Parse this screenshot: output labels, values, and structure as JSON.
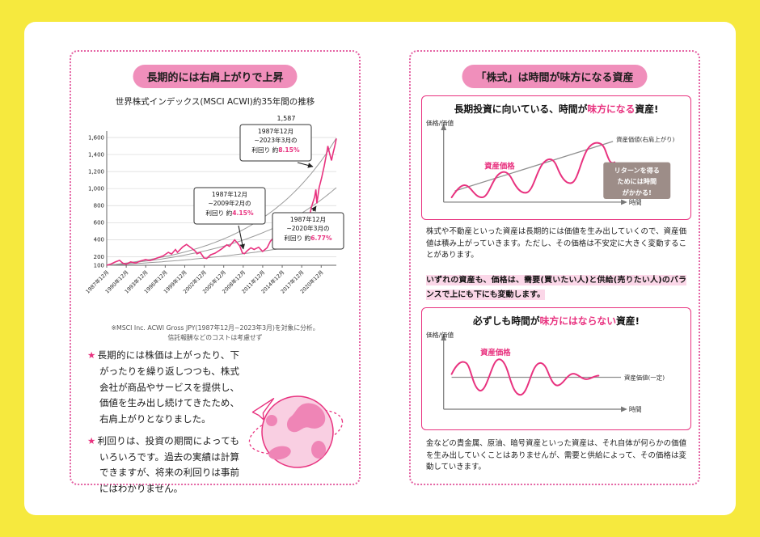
{
  "page": {
    "left": {
      "badge": "長期的には右肩上がりで上昇",
      "star": "★",
      "footnote_line1": "※MSCI Inc. ACWI Gross JPY(1987年12月~2023年3月)を対象に分析。",
      "footnote_line2": "信託報酬などのコストは考慮せず",
      "bullets": [
        "長期的には株価は上がったり、下がったりを繰り返しつつも、株式会社が商品やサービスを提供し、価値を生み出し続けてきたため、右肩上がりとなりました。",
        "利回りは、投資の期間によってもいろいろです。過去の実績は計算できますが、将来の利回りは事前にはわかりません。"
      ]
    },
    "right": {
      "badge": "「株式」は時間が味方になる資産",
      "box1": {
        "header_pre": "長期投資に向いている、時間が",
        "header_em": "味方になる",
        "header_post": "資産!",
        "desc": "株式や不動産といった資産は長期的には価値を生み出していくので、資産価値は積み上がっていきます。ただし、その価格は不安定に大きく変動することがあります。"
      },
      "between_note": "いずれの資産も、価格は、需要(買いたい人)と供給(売りたい人)のバランスで上にも下にも変動します。",
      "box2": {
        "header_pre": "必ずしも時間が",
        "header_em": "味方にはならない",
        "header_post": "資産!",
        "desc": "金などの貴金属、原油、暗号資産といった資産は、それ自体が何らかの価値を生み出していくことはありませんが、需要と供給によって、その価格は変動していきます。"
      }
    }
  },
  "chart_data": [
    {
      "type": "line",
      "title": "世界株式インデックス(MSCI ACWI)約35年間の推移",
      "end_label": "1,587",
      "end_value": 1587,
      "grid": "horizontal",
      "legend": false,
      "x_axis": {
        "start": 1987.92,
        "end": 2023.25,
        "tick_step_years": 3,
        "ticks": [
          "1987年12月",
          "1990年12月",
          "1993年12月",
          "1996年12月",
          "1999年12月",
          "2002年12月",
          "2005年12月",
          "2008年12月",
          "2011年12月",
          "2014年12月",
          "2017年12月",
          "2020年12月"
        ]
      },
      "y_axis": {
        "range": [
          100,
          1600
        ],
        "ticks": [
          {
            "label": "1,600",
            "value": 1600
          },
          {
            "label": "1,400",
            "value": 1400
          },
          {
            "label": "1,200",
            "value": 1200
          },
          {
            "label": "1,000",
            "value": 1000
          },
          {
            "label": "800",
            "value": 800
          },
          {
            "label": "600",
            "value": 600
          },
          {
            "label": "400",
            "value": 400
          },
          {
            "label": "200",
            "value": 200
          },
          {
            "label": "100",
            "value": 100
          }
        ]
      },
      "series": [
        {
          "name": "世界株式インデックス(MSCI ACWI)",
          "color": "#e8327f",
          "points": [
            [
              1987.92,
              100
            ],
            [
              1988.5,
              112
            ],
            [
              1989.2,
              138
            ],
            [
              1989.9,
              158
            ],
            [
              1990.4,
              125
            ],
            [
              1990.9,
              112
            ],
            [
              1991.6,
              140
            ],
            [
              1992.4,
              126
            ],
            [
              1993.1,
              150
            ],
            [
              1993.9,
              166
            ],
            [
              1994.6,
              155
            ],
            [
              1995.6,
              184
            ],
            [
              1996.6,
              210
            ],
            [
              1997.4,
              252
            ],
            [
              1997.9,
              232
            ],
            [
              1998.5,
              285
            ],
            [
              1998.8,
              252
            ],
            [
              1999.6,
              315
            ],
            [
              2000.2,
              345
            ],
            [
              2000.9,
              305
            ],
            [
              2001.6,
              262
            ],
            [
              2001.8,
              235
            ],
            [
              2002.3,
              252
            ],
            [
              2002.9,
              185
            ],
            [
              2003.3,
              180
            ],
            [
              2003.9,
              222
            ],
            [
              2004.6,
              242
            ],
            [
              2005.6,
              292
            ],
            [
              2006.4,
              340
            ],
            [
              2006.8,
              322
            ],
            [
              2007.6,
              398
            ],
            [
              2008.0,
              365
            ],
            [
              2008.4,
              325
            ],
            [
              2008.8,
              245
            ],
            [
              2009.1,
              236
            ],
            [
              2009.6,
              275
            ],
            [
              2010.1,
              305
            ],
            [
              2010.6,
              285
            ],
            [
              2011.3,
              312
            ],
            [
              2011.9,
              262
            ],
            [
              2012.6,
              305
            ],
            [
              2013.1,
              382
            ],
            [
              2013.6,
              425
            ],
            [
              2014.1,
              455
            ],
            [
              2014.9,
              505
            ],
            [
              2015.5,
              545
            ],
            [
              2016.0,
              488
            ],
            [
              2016.4,
              462
            ],
            [
              2016.9,
              515
            ],
            [
              2017.6,
              590
            ],
            [
              2018.1,
              700
            ],
            [
              2018.5,
              660
            ],
            [
              2018.95,
              610
            ],
            [
              2019.4,
              780
            ],
            [
              2019.9,
              900
            ],
            [
              2020.1,
              990
            ],
            [
              2020.25,
              826
            ],
            [
              2020.6,
              1010
            ],
            [
              2021.0,
              1130
            ],
            [
              2021.4,
              1270
            ],
            [
              2021.8,
              1430
            ],
            [
              2021.95,
              1500
            ],
            [
              2022.2,
              1415
            ],
            [
              2022.5,
              1330
            ],
            [
              2022.75,
              1420
            ],
            [
              2023.0,
              1495
            ],
            [
              2023.25,
              1587
            ]
          ]
        }
      ],
      "trend_lines": [
        {
          "label": "1987年12月~2023年3月の利回り 約8.15%",
          "annual_rate_pct": 8.15
        },
        {
          "label": "1987年12月~2020年3月の利回り 約6.77%",
          "annual_rate_pct": 6.77
        },
        {
          "label": "1987年12月~2009年2月の利回り 約4.15%",
          "annual_rate_pct": 4.15
        }
      ],
      "annotations": [
        {
          "line1": "1987年12月",
          "line2": "~2023年3月の",
          "prefix": "利回り 約",
          "value": "8.15%"
        },
        {
          "line1": "1987年12月",
          "line2": "~2009年2月の",
          "prefix": "利回り 約",
          "value": "4.15%"
        },
        {
          "line1": "1987年12月",
          "line2": "~2020年3月の",
          "prefix": "利回り 約",
          "value": "6.77%"
        }
      ]
    },
    {
      "type": "line",
      "conceptual": true,
      "title": "長期投資に向いている、時間が味方になる資産!",
      "ylabel": "価格/価値",
      "xlabel": "時間",
      "series": [
        {
          "name": "資産価格",
          "style": "wavy-rising",
          "color": "#e8327f"
        },
        {
          "name": "資産価値(右肩上がり)",
          "style": "straight-rising",
          "color": "#8f8f8f"
        }
      ],
      "annotation_lines": [
        "リターンを得る",
        "ためには時間",
        "がかかる!"
      ]
    },
    {
      "type": "line",
      "conceptual": true,
      "title": "必ずしも時間が味方にはならない資産!",
      "ylabel": "価格/価値",
      "xlabel": "時間",
      "series": [
        {
          "name": "資産価格",
          "style": "wavy-flat",
          "color": "#e8327f"
        },
        {
          "name": "資産価値(一定)",
          "style": "straight-flat",
          "color": "#8f8f8f"
        }
      ]
    }
  ]
}
